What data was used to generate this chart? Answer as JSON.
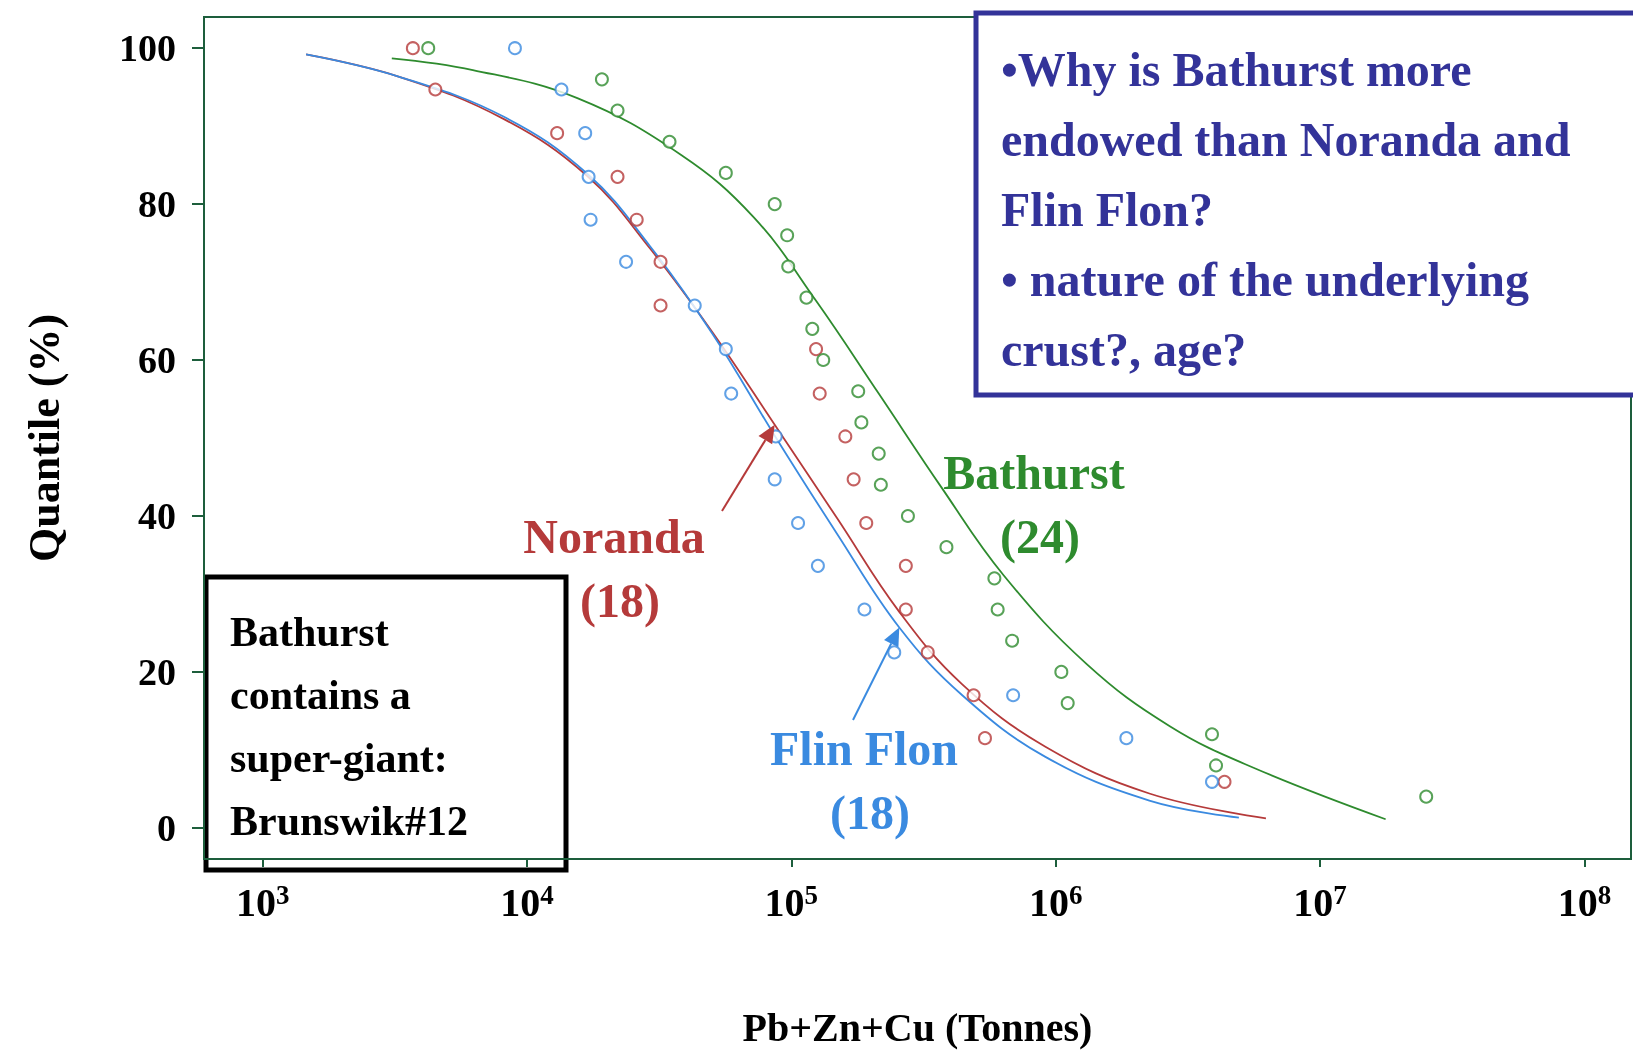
{
  "chart_data": {
    "type": "scatter",
    "xlabel": "Pb+Zn+Cu (Tonnes)",
    "ylabel": "Quantile (%)",
    "log": "x",
    "grid": false,
    "legend": "bottom",
    "marker": "circle",
    "xlim": [
      600,
      150000000
    ],
    "xticks": [
      {
        "value": 1000,
        "label": "10$^{3}$"
      },
      {
        "value": 10000,
        "label": "10$^{4}$"
      },
      {
        "value": 100000,
        "label": "10$^{5}$"
      },
      {
        "value": 1000000,
        "label": "10$^{6}$"
      },
      {
        "value": 10000000,
        "label": "10$^{7}$"
      },
      {
        "value": 100000000,
        "label": "10$^{8}$"
      }
    ],
    "ylim": [
      -4,
      104
    ],
    "yticks": [
      0,
      20,
      40,
      60,
      80,
      100
    ],
    "annotations": [
      "•Why is Bathurst more endowed than Noranda and Flin Flon?",
      "• nature of the underlying crust?, age?",
      "Bathurst contains a super-giant: Brunswik#12"
    ],
    "series": [
      {
        "name": "Noranda (18)",
        "color": "#b53a3a",
        "x": [
          3700,
          4500,
          13000,
          22000,
          26000,
          32000,
          32000,
          124000,
          128000,
          160000,
          172000,
          192000,
          271000,
          271000,
          328000,
          489000,
          540000,
          4350000
        ],
        "values": [
          100,
          94.7,
          89.1,
          83.5,
          78,
          72.6,
          67,
          61.4,
          55.7,
          50.2,
          44.7,
          39.1,
          33.6,
          28,
          22.5,
          17,
          11.5,
          5.9
        ]
      },
      {
        "name": "Flin Flon (18)",
        "color": "#3a8ae0",
        "x": [
          9000,
          13500,
          16600,
          17100,
          17400,
          23700,
          43100,
          56500,
          59200,
          87300,
          86500,
          106000,
          126000,
          189000,
          245000,
          690000,
          1850000,
          3900000
        ],
        "values": [
          100,
          94.7,
          89.1,
          83.5,
          78,
          72.6,
          67,
          61.4,
          55.7,
          50.2,
          44.7,
          39.1,
          33.6,
          28,
          22.5,
          17,
          11.5,
          5.9
        ]
      },
      {
        "name": "Bathurst (24)",
        "color": "#2e8b2e",
        "x": [
          4230,
          19200,
          22000,
          34600,
          56500,
          86500,
          96400,
          97300,
          114000,
          120000,
          132000,
          179000,
          184000,
          214000,
          218000,
          276000,
          386000,
          586000,
          603000,
          684000,
          1050000,
          1110000,
          3900000,
          4040000,
          25200000
        ],
        "values": [
          100,
          96,
          92,
          88,
          84,
          80,
          76,
          72,
          68,
          64,
          60,
          56,
          52,
          48,
          44,
          40,
          36,
          32,
          28,
          24,
          20,
          16,
          12,
          8,
          4
        ]
      },
      {
        "type": "line",
        "marker": "none",
        "color": "#b53a3a",
        "x": [
          1460,
          3310,
          8180,
          16900,
          29200,
          50200,
          86500,
          149000,
          256000,
          443000,
          914000,
          2260000,
          6240000
        ],
        "values": [
          99.2,
          96.3,
          90.9,
          83.6,
          74.3,
          63.6,
          51.7,
          39.7,
          27.7,
          18.4,
          10.4,
          4.4,
          1.2
        ]
      },
      {
        "type": "line",
        "marker": "none",
        "color": "#3a8ae0",
        "x": [
          1460,
          3310,
          8180,
          16900,
          29200,
          50200,
          86500,
          149000,
          256000,
          443000,
          914000,
          2260000,
          4930000
        ],
        "values": [
          99.2,
          96.3,
          91.2,
          83.9,
          74.6,
          63.4,
          50.3,
          37.7,
          25.7,
          17,
          9.1,
          3.5,
          1.3
        ]
      },
      {
        "type": "line",
        "marker": "none",
        "color": "#2e8b2e",
        "x": [
          3080,
          6240,
          15500,
          38300,
          72100,
          124000,
          214000,
          369000,
          635000,
          1310000,
          2710000,
          5600000,
          17700000
        ],
        "values": [
          98.7,
          97.2,
          93.6,
          86.3,
          78.3,
          67.6,
          55.7,
          43.7,
          32.4,
          21,
          13,
          7.7,
          1.1
        ]
      }
    ]
  }
}
